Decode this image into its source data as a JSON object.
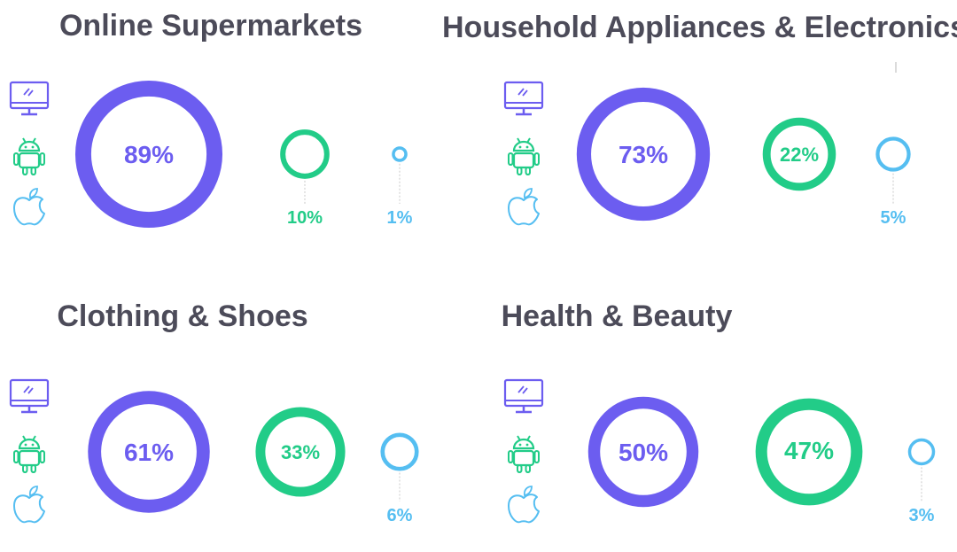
{
  "colors": {
    "desktop": "#6c5df0",
    "android": "#22cc88",
    "ios": "#55bef1",
    "title": "#4c4b59"
  },
  "icons": {
    "desktop": "monitor-icon",
    "android": "android-icon",
    "ios": "apple-icon"
  },
  "chart_data": [
    {
      "type": "bubble-ring",
      "title": "Online Supermarkets",
      "categories": [
        "Desktop",
        "Android",
        "iOS"
      ],
      "values": [
        89,
        10,
        1
      ],
      "labels": [
        "89%",
        "10%",
        "1%"
      ]
    },
    {
      "type": "bubble-ring",
      "title": "Household Appliances & Electronics",
      "categories": [
        "Desktop",
        "Android",
        "iOS"
      ],
      "values": [
        73,
        22,
        5
      ],
      "labels": [
        "73%",
        "22%",
        "5%"
      ]
    },
    {
      "type": "bubble-ring",
      "title": "Clothing & Shoes",
      "categories": [
        "Desktop",
        "Android",
        "iOS"
      ],
      "values": [
        61,
        33,
        6
      ],
      "labels": [
        "61%",
        "33%",
        "6%"
      ]
    },
    {
      "type": "bubble-ring",
      "title": "Health & Beauty",
      "categories": [
        "Desktop",
        "Android",
        "iOS"
      ],
      "values": [
        50,
        47,
        3
      ],
      "labels": [
        "50%",
        "47%",
        "3%"
      ]
    }
  ]
}
